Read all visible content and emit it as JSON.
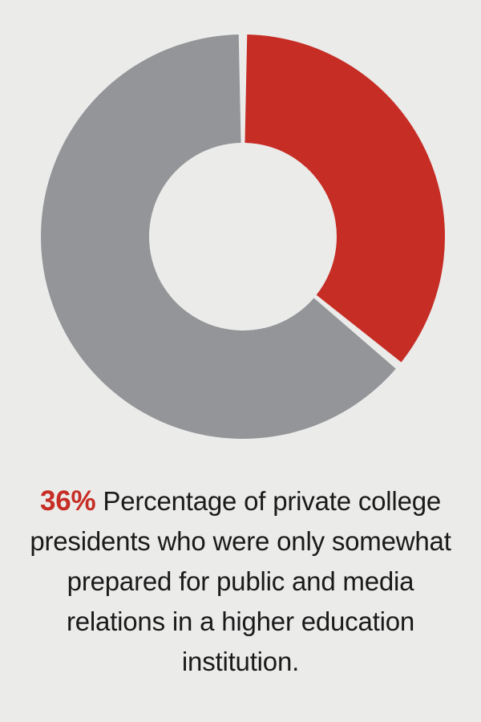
{
  "chart_data": {
    "type": "pie",
    "style": "donut",
    "slices": [
      {
        "value": 36,
        "color": "#c62d25"
      },
      {
        "value": 64,
        "color": "#939598"
      }
    ],
    "legend": "none",
    "grid": false
  },
  "caption": {
    "stat": "36%",
    "stat_color": "#c62d25",
    "text": "Percentage of private college presidents who were only somewhat prepared for public and media relations in a higher education institution."
  }
}
